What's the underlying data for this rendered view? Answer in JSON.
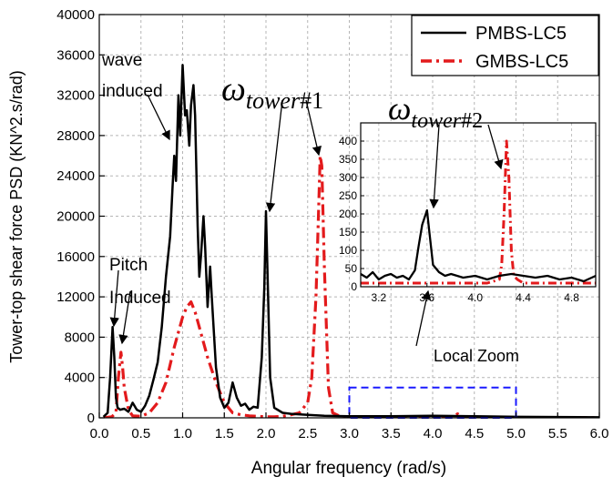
{
  "chart_data": {
    "type": "line",
    "xlabel": "Angular frequency (rad/s)",
    "ylabel": "Tower-top shear force PSD (KN^2.s/rad)",
    "xlim": [
      0,
      6
    ],
    "ylim": [
      0,
      40000
    ],
    "xticks": [
      "0.0",
      "0.5",
      "1.0",
      "1.5",
      "2.0",
      "2.5",
      "3.0",
      "3.5",
      "4.0",
      "4.5",
      "5.0",
      "5.5",
      "6.0"
    ],
    "yticks": [
      "0",
      "4000",
      "8000",
      "12000",
      "16000",
      "20000",
      "24000",
      "28000",
      "32000",
      "36000",
      "40000"
    ],
    "grid": true,
    "legend_position": "top-right",
    "series": [
      {
        "name": "PMBS-LC5",
        "color": "#000000",
        "dash": "solid",
        "x": [
          0.05,
          0.1,
          0.13,
          0.16,
          0.18,
          0.2,
          0.22,
          0.25,
          0.3,
          0.35,
          0.4,
          0.45,
          0.5,
          0.55,
          0.6,
          0.65,
          0.7,
          0.75,
          0.8,
          0.85,
          0.88,
          0.9,
          0.92,
          0.95,
          0.97,
          1.0,
          1.03,
          1.05,
          1.08,
          1.1,
          1.13,
          1.15,
          1.18,
          1.2,
          1.22,
          1.25,
          1.27,
          1.3,
          1.33,
          1.35,
          1.4,
          1.45,
          1.5,
          1.55,
          1.6,
          1.65,
          1.7,
          1.75,
          1.8,
          1.85,
          1.9,
          1.95,
          1.98,
          2.0,
          2.02,
          2.05,
          2.1,
          2.2,
          2.3,
          2.5,
          2.7,
          3.0,
          3.5,
          4.0,
          4.5,
          5.0,
          5.5,
          6.0
        ],
        "y": [
          100,
          500,
          4000,
          9000,
          6000,
          2000,
          1000,
          800,
          900,
          600,
          1500,
          800,
          600,
          1200,
          2200,
          3800,
          5500,
          9000,
          14000,
          18000,
          23000,
          26000,
          23500,
          32000,
          28000,
          35000,
          30000,
          30500,
          27000,
          31000,
          33000,
          30000,
          19000,
          14000,
          16000,
          20000,
          17000,
          11000,
          15000,
          12000,
          5000,
          2000,
          1000,
          1500,
          3500,
          2000,
          1200,
          1400,
          800,
          1100,
          1000,
          6000,
          13000,
          20500,
          14000,
          4000,
          1000,
          500,
          400,
          300,
          200,
          150,
          150,
          200,
          150,
          100,
          80,
          50
        ]
      },
      {
        "name": "GMBS-LC5",
        "color": "#e31a1c",
        "dash": "dashdot",
        "x": [
          0.05,
          0.15,
          0.2,
          0.23,
          0.26,
          0.28,
          0.3,
          0.35,
          0.4,
          0.5,
          0.6,
          0.7,
          0.8,
          0.9,
          1.0,
          1.05,
          1.1,
          1.15,
          1.2,
          1.3,
          1.4,
          1.5,
          1.6,
          1.7,
          1.8,
          1.9,
          2.0,
          2.1,
          2.2,
          2.3,
          2.4,
          2.5,
          2.55,
          2.6,
          2.63,
          2.65,
          2.67,
          2.7,
          2.75,
          2.8,
          2.9,
          3.0,
          3.5,
          4.0,
          4.25,
          4.3,
          4.35,
          4.5,
          5.0,
          6.0
        ],
        "y": [
          0,
          100,
          500,
          4000,
          6500,
          5000,
          3000,
          800,
          200,
          150,
          500,
          1500,
          3500,
          7000,
          10000,
          11000,
          11500,
          10500,
          9000,
          6000,
          3500,
          1500,
          500,
          300,
          200,
          150,
          100,
          100,
          150,
          300,
          500,
          1500,
          4000,
          12000,
          20000,
          26000,
          25000,
          15000,
          3000,
          500,
          100,
          50,
          50,
          50,
          100,
          400,
          100,
          50,
          30,
          20
        ]
      }
    ],
    "annotations": [
      "wave induced",
      "Pitch Induced",
      "Local Zoom"
    ],
    "omega_labels": {
      "main": {
        "symbol": "ω",
        "subscript": "tower",
        "suffix": "#1"
      },
      "inset": {
        "symbol": "ω",
        "subscript": "tower",
        "suffix": "#2"
      }
    },
    "zoom_box": {
      "xlim": [
        3.0,
        5.0
      ],
      "ylim": [
        0,
        3000
      ],
      "color": "#1a1aff"
    },
    "inset": {
      "xlim": [
        3.05,
        5.0
      ],
      "ylim": [
        0,
        450
      ],
      "xticks": [
        "3.2",
        "3.6",
        "4.0",
        "4.4",
        "4.8"
      ],
      "yticks": [
        "0",
        "50",
        "100",
        "150",
        "200",
        "250",
        "300",
        "350",
        "400"
      ],
      "series": [
        {
          "name": "PMBS-LC5",
          "color": "#000000",
          "dash": "solid",
          "x": [
            3.05,
            3.1,
            3.15,
            3.2,
            3.25,
            3.3,
            3.35,
            3.4,
            3.45,
            3.5,
            3.53,
            3.56,
            3.6,
            3.62,
            3.65,
            3.7,
            3.75,
            3.8,
            3.9,
            4.0,
            4.1,
            4.2,
            4.3,
            4.4,
            4.5,
            4.6,
            4.7,
            4.8,
            4.9,
            5.0
          ],
          "y": [
            35,
            25,
            40,
            20,
            30,
            35,
            25,
            30,
            20,
            45,
            110,
            170,
            210,
            150,
            60,
            40,
            30,
            35,
            25,
            30,
            20,
            30,
            35,
            30,
            25,
            30,
            20,
            25,
            15,
            30
          ]
        },
        {
          "name": "GMBS-LC5",
          "color": "#e31a1c",
          "dash": "dashdot",
          "x": [
            3.05,
            3.2,
            3.4,
            3.6,
            3.8,
            4.0,
            4.1,
            4.2,
            4.22,
            4.24,
            4.26,
            4.28,
            4.3,
            4.32,
            4.35,
            4.4,
            4.6,
            4.8,
            5.0
          ],
          "y": [
            10,
            10,
            10,
            10,
            10,
            10,
            10,
            20,
            60,
            200,
            400,
            300,
            100,
            30,
            20,
            10,
            10,
            10,
            10
          ]
        }
      ]
    }
  }
}
